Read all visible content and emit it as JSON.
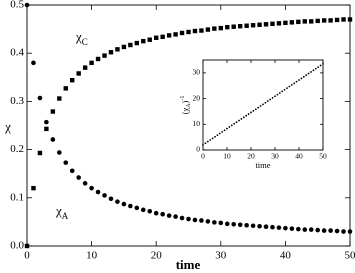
{
  "chart_data": [
    {
      "type": "scatter",
      "xlabel": "time",
      "ylabel": "χ",
      "xlim": [
        0,
        50
      ],
      "xticks": [
        0,
        10,
        20,
        30,
        40,
        50
      ],
      "ylim": [
        0,
        0.5
      ],
      "yticks": [
        {
          "value": 0,
          "label": "0.0"
        },
        0.1,
        0.2,
        0.3,
        0.4,
        0.5
      ],
      "x": [
        0,
        1,
        2,
        3,
        4,
        5,
        6,
        7,
        8,
        9,
        10,
        11,
        12,
        13,
        14,
        15,
        16,
        17,
        18,
        19,
        20,
        21,
        22,
        23,
        24,
        25,
        26,
        27,
        28,
        29,
        30,
        31,
        32,
        33,
        34,
        35,
        36,
        37,
        38,
        39,
        40,
        41,
        42,
        43,
        44,
        45,
        46,
        47,
        48,
        49,
        50
      ],
      "series": [
        {
          "marker": "square",
          "color": "#000000",
          "values": [
            0,
            0.12,
            0.193,
            0.243,
            0.279,
            0.306,
            0.327,
            0.344,
            0.358,
            0.37,
            0.38,
            0.388,
            0.395,
            0.402,
            0.408,
            0.413,
            0.417,
            0.421,
            0.425,
            0.428,
            0.432,
            0.434,
            0.437,
            0.439,
            0.442,
            0.444,
            0.446,
            0.447,
            0.449,
            0.451,
            0.452,
            0.454,
            0.455,
            0.456,
            0.457,
            0.458,
            0.459,
            0.46,
            0.461,
            0.462,
            0.463,
            0.464,
            0.465,
            0.466,
            0.466,
            0.467,
            0.468,
            0.468,
            0.469,
            0.47,
            0.47
          ]
        },
        {
          "marker": "circle",
          "color": "#000000",
          "values": [
            0.5,
            0.38,
            0.307,
            0.257,
            0.221,
            0.194,
            0.173,
            0.156,
            0.142,
            0.13,
            0.12,
            0.112,
            0.105,
            0.098,
            0.092,
            0.087,
            0.083,
            0.079,
            0.075,
            0.072,
            0.068,
            0.066,
            0.063,
            0.061,
            0.058,
            0.056,
            0.054,
            0.053,
            0.051,
            0.049,
            0.048,
            0.046,
            0.045,
            0.044,
            0.043,
            0.042,
            0.041,
            0.04,
            0.039,
            0.038,
            0.037,
            0.036,
            0.035,
            0.034,
            0.034,
            0.033,
            0.032,
            0.032,
            0.031,
            0.03,
            0.03
          ]
        }
      ],
      "annotations": [
        {
          "text": "χ",
          "sub": "C"
        },
        {
          "text": "χ",
          "sub": "A"
        }
      ]
    },
    {
      "type": "scatter",
      "xlabel": "time",
      "ylabel": {
        "text": "(χ",
        "sub": "A",
        "close": ")",
        "sup": "-1"
      },
      "xlim": [
        0,
        50
      ],
      "xticks": [
        0,
        10,
        20,
        30,
        40,
        50
      ],
      "ylim": [
        0,
        35
      ],
      "yticks": [
        0,
        10,
        20,
        30
      ],
      "x": [
        0,
        1,
        2,
        3,
        4,
        5,
        6,
        7,
        8,
        9,
        10,
        11,
        12,
        13,
        14,
        15,
        16,
        17,
        18,
        19,
        20,
        21,
        22,
        23,
        24,
        25,
        26,
        27,
        28,
        29,
        30,
        31,
        32,
        33,
        34,
        35,
        36,
        37,
        38,
        39,
        40,
        41,
        42,
        43,
        44,
        45,
        46,
        47,
        48,
        49,
        50
      ],
      "series": [
        {
          "marker": "dot",
          "color": "#000000",
          "values": [
            2,
            2.63,
            3.26,
            3.89,
            4.52,
            5.15,
            5.78,
            6.41,
            7.04,
            7.67,
            8.3,
            8.93,
            9.56,
            10.19,
            10.82,
            11.45,
            12.08,
            12.71,
            13.34,
            13.97,
            14.6,
            15.23,
            15.86,
            16.49,
            17.12,
            17.75,
            18.38,
            19.01,
            19.64,
            20.27,
            20.9,
            21.53,
            22.16,
            22.79,
            23.42,
            24.05,
            24.68,
            25.31,
            25.94,
            26.57,
            27.2,
            27.83,
            28.46,
            29.09,
            29.72,
            30.35,
            30.98,
            31.61,
            32.24,
            32.87,
            33.5
          ]
        }
      ]
    }
  ]
}
